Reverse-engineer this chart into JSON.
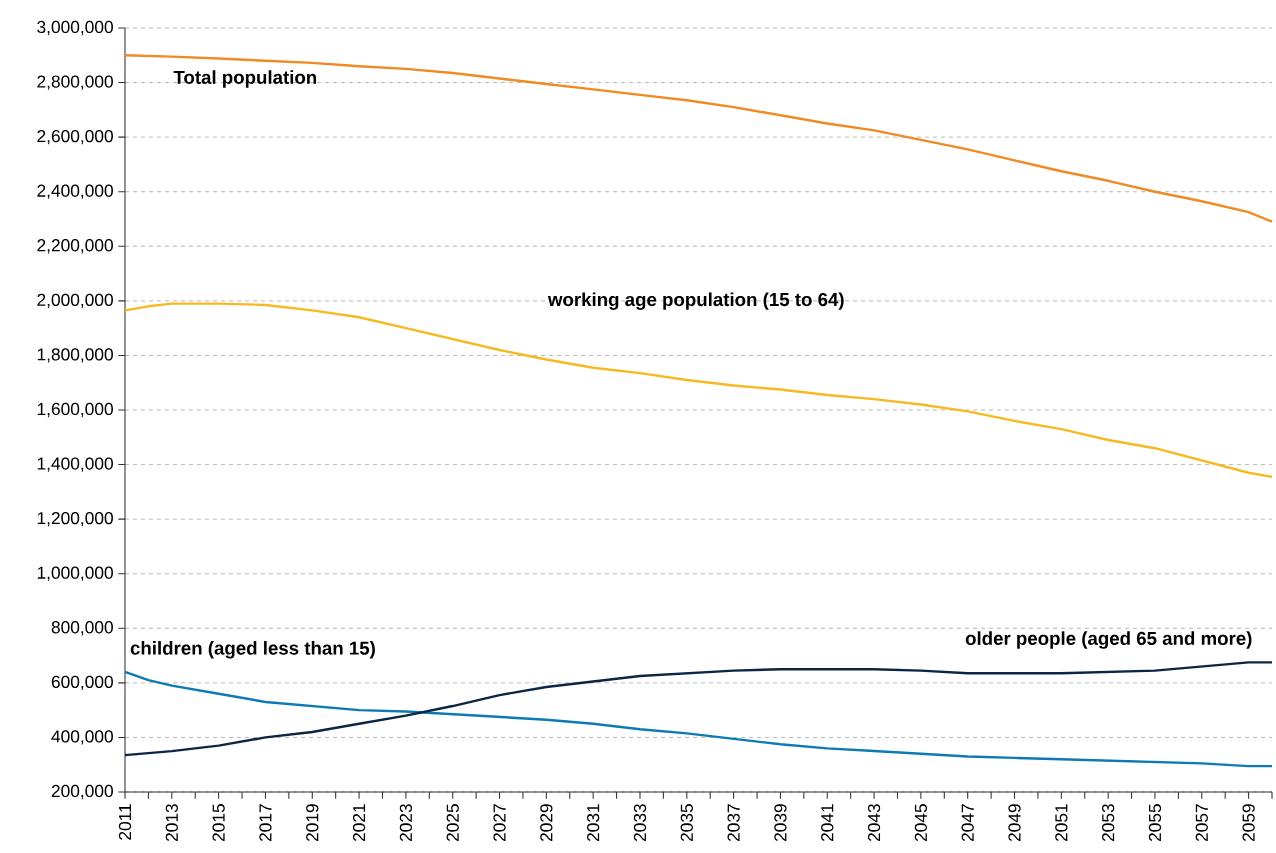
{
  "chart_data": {
    "type": "line",
    "series": [
      {
        "name": "Total population",
        "color": "#f08a24",
        "x": [
          2011,
          2013,
          2015,
          2017,
          2019,
          2021,
          2023,
          2025,
          2027,
          2029,
          2031,
          2033,
          2035,
          2037,
          2039,
          2041,
          2043,
          2045,
          2047,
          2049,
          2051,
          2053,
          2055,
          2057,
          2059,
          2060
        ],
        "values": [
          2900000,
          2895000,
          2888000,
          2880000,
          2872000,
          2860000,
          2850000,
          2835000,
          2815000,
          2795000,
          2775000,
          2755000,
          2735000,
          2710000,
          2680000,
          2650000,
          2625000,
          2590000,
          2555000,
          2515000,
          2475000,
          2440000,
          2400000,
          2365000,
          2325000,
          2290000
        ]
      },
      {
        "name": "working age population (15 to 64)",
        "color": "#f6b921",
        "x": [
          2011,
          2012,
          2013,
          2015,
          2017,
          2019,
          2021,
          2023,
          2025,
          2027,
          2029,
          2031,
          2033,
          2035,
          2037,
          2039,
          2041,
          2043,
          2045,
          2047,
          2049,
          2051,
          2053,
          2055,
          2057,
          2059,
          2060
        ],
        "values": [
          1965000,
          1980000,
          1990000,
          1990000,
          1985000,
          1965000,
          1940000,
          1900000,
          1860000,
          1820000,
          1785000,
          1755000,
          1735000,
          1710000,
          1690000,
          1675000,
          1655000,
          1640000,
          1620000,
          1595000,
          1560000,
          1530000,
          1490000,
          1460000,
          1415000,
          1370000,
          1355000
        ]
      },
      {
        "name": "children (aged less than 15)",
        "color": "#0c7bb3",
        "x": [
          2011,
          2012,
          2013,
          2015,
          2017,
          2019,
          2021,
          2023,
          2025,
          2027,
          2029,
          2031,
          2033,
          2035,
          2037,
          2039,
          2041,
          2043,
          2045,
          2047,
          2049,
          2051,
          2053,
          2055,
          2057,
          2059,
          2060
        ],
        "values": [
          640000,
          610000,
          590000,
          560000,
          530000,
          515000,
          500000,
          495000,
          485000,
          475000,
          465000,
          450000,
          430000,
          415000,
          395000,
          375000,
          360000,
          350000,
          340000,
          330000,
          325000,
          320000,
          315000,
          310000,
          305000,
          295000,
          295000
        ]
      },
      {
        "name": "older people (aged 65 and more)",
        "color": "#0b2545",
        "x": [
          2011,
          2013,
          2015,
          2017,
          2019,
          2021,
          2023,
          2025,
          2027,
          2029,
          2031,
          2033,
          2035,
          2037,
          2039,
          2041,
          2043,
          2045,
          2047,
          2049,
          2051,
          2053,
          2055,
          2057,
          2059,
          2060
        ],
        "values": [
          335000,
          350000,
          370000,
          400000,
          420000,
          450000,
          480000,
          515000,
          555000,
          585000,
          605000,
          625000,
          635000,
          645000,
          650000,
          650000,
          650000,
          645000,
          635000,
          635000,
          635000,
          640000,
          645000,
          660000,
          675000,
          675000
        ]
      }
    ],
    "xlim": [
      2011,
      2060
    ],
    "xticks": [
      2011,
      {
        "value": 2012,
        "label": null
      },
      2013,
      {
        "value": 2014,
        "label": null
      },
      2015,
      {
        "value": 2016,
        "label": null
      },
      2017,
      {
        "value": 2018,
        "label": null
      },
      2019,
      {
        "value": 2020,
        "label": null
      },
      2021,
      {
        "value": 2022,
        "label": null
      },
      2023,
      {
        "value": 2024,
        "label": null
      },
      2025,
      {
        "value": 2026,
        "label": null
      },
      2027,
      {
        "value": 2028,
        "label": null
      },
      2029,
      {
        "value": 2030,
        "label": null
      },
      2031,
      {
        "value": 2032,
        "label": null
      },
      2033,
      {
        "value": 2034,
        "label": null
      },
      2035,
      {
        "value": 2036,
        "label": null
      },
      2037,
      {
        "value": 2038,
        "label": null
      },
      2039,
      {
        "value": 2040,
        "label": null
      },
      2041,
      {
        "value": 2042,
        "label": null
      },
      2043,
      {
        "value": 2044,
        "label": null
      },
      2045,
      {
        "value": 2046,
        "label": null
      },
      2047,
      {
        "value": 2048,
        "label": null
      },
      2049,
      {
        "value": 2050,
        "label": null
      },
      2051,
      {
        "value": 2052,
        "label": null
      },
      2053,
      {
        "value": 2054,
        "label": null
      },
      2055,
      {
        "value": 2056,
        "label": null
      },
      2057,
      {
        "value": 2058,
        "label": null
      },
      2059,
      {
        "value": 2060,
        "label": null
      }
    ],
    "ylim": [
      200000,
      3000000
    ],
    "yticks": [
      {
        "value": 200000,
        "label": "200,000"
      },
      {
        "value": 400000,
        "label": "400,000"
      },
      {
        "value": 600000,
        "label": "600,000"
      },
      {
        "value": 800000,
        "label": "800,000"
      },
      {
        "value": 1000000,
        "label": "1,000,000"
      },
      {
        "value": 1200000,
        "label": "1,200,000"
      },
      {
        "value": 1400000,
        "label": "1,400,000"
      },
      {
        "value": 1600000,
        "label": "1,600,000"
      },
      {
        "value": 1800000,
        "label": "1,800,000"
      },
      {
        "value": 2000000,
        "label": "2,000,000"
      },
      {
        "value": 2200000,
        "label": "2,200,000"
      },
      {
        "value": 2400000,
        "label": "2,400,000"
      },
      {
        "value": 2600000,
        "label": "2,600,000"
      },
      {
        "value": 2800000,
        "label": "2,800,000"
      },
      {
        "value": 3000000,
        "label": "3,000,000"
      }
    ],
    "grid": "y",
    "legend": false,
    "marker": "none",
    "line_style": "solid"
  }
}
